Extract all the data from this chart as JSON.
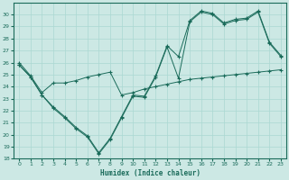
{
  "xlabel": "Humidex (Indice chaleur)",
  "bg_color": "#cce8e4",
  "grid_color": "#aad8d2",
  "line_color": "#1a6b5a",
  "xlim": [
    -0.5,
    23.5
  ],
  "ylim": [
    18,
    31
  ],
  "yticks": [
    18,
    19,
    20,
    21,
    22,
    23,
    24,
    25,
    26,
    27,
    28,
    29,
    30
  ],
  "xticks": [
    0,
    1,
    2,
    3,
    4,
    5,
    6,
    7,
    8,
    9,
    10,
    11,
    12,
    13,
    14,
    15,
    16,
    17,
    18,
    19,
    20,
    21,
    22,
    23
  ],
  "line1_x": [
    0,
    1,
    2,
    3,
    4,
    5,
    6,
    7,
    8,
    9,
    10,
    11,
    12,
    13,
    14,
    15,
    16,
    17,
    18,
    19,
    20,
    21,
    22,
    23
  ],
  "line1_y": [
    25.8,
    24.8,
    23.3,
    22.2,
    21.4,
    20.5,
    19.8,
    18.4,
    19.6,
    21.4,
    23.2,
    23.1,
    24.8,
    27.3,
    24.7,
    29.4,
    30.2,
    30.0,
    29.2,
    29.5,
    29.6,
    30.2,
    27.6,
    26.5
  ],
  "line2_x": [
    0,
    1,
    2,
    3,
    4,
    5,
    6,
    7,
    8,
    9,
    10,
    11,
    12,
    13,
    14,
    15,
    16,
    17,
    18,
    19,
    20,
    21,
    22,
    23
  ],
  "line2_y": [
    25.8,
    24.8,
    23.3,
    22.3,
    21.5,
    20.6,
    19.9,
    18.5,
    19.7,
    21.5,
    23.3,
    23.2,
    24.9,
    27.4,
    26.5,
    29.5,
    30.3,
    30.1,
    29.3,
    29.6,
    29.7,
    30.3,
    27.7,
    26.6
  ],
  "line3_x": [
    0,
    1,
    2,
    3,
    4,
    5,
    6,
    7,
    8,
    9,
    10,
    11,
    12,
    13,
    14,
    15,
    16,
    17,
    18,
    19,
    20,
    21,
    22,
    23
  ],
  "line3_y": [
    26.0,
    24.9,
    23.5,
    24.3,
    24.3,
    24.5,
    24.8,
    25.0,
    25.2,
    23.3,
    23.5,
    23.8,
    24.0,
    24.2,
    24.4,
    24.6,
    24.7,
    24.8,
    24.9,
    25.0,
    25.1,
    25.2,
    25.3,
    25.4
  ]
}
